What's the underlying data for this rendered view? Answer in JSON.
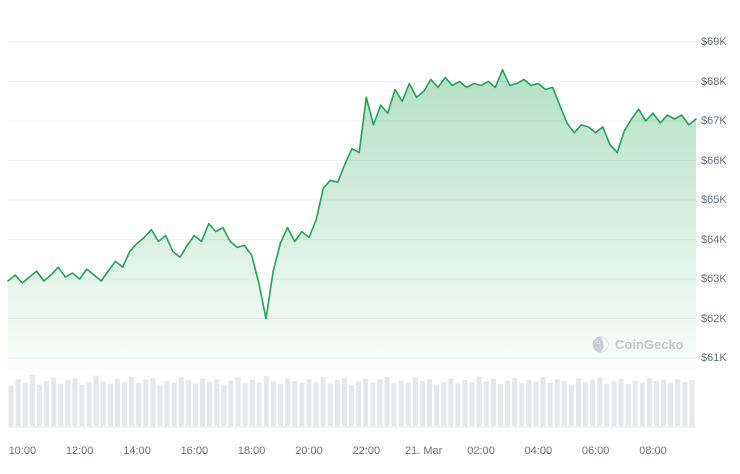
{
  "watermark": {
    "label": "CoinGecko"
  },
  "chart_data": {
    "type": "area",
    "x_unit": "hours",
    "x_range": [
      9.5,
      33.5
    ],
    "x_step_hours": 0.25,
    "y_axis_range_k": [
      61,
      69
    ],
    "grid": true,
    "legend": "none",
    "y_ticks": [
      {
        "value": 61,
        "label": "$61K"
      },
      {
        "value": 62,
        "label": "$62K"
      },
      {
        "value": 63,
        "label": "$63K"
      },
      {
        "value": 64,
        "label": "$64K"
      },
      {
        "value": 65,
        "label": "$65K"
      },
      {
        "value": 66,
        "label": "$66K"
      },
      {
        "value": 67,
        "label": "$67K"
      },
      {
        "value": 68,
        "label": "$68K"
      },
      {
        "value": 69,
        "label": "$69K"
      }
    ],
    "x_ticks": [
      {
        "hour": 10,
        "label": "10:00"
      },
      {
        "hour": 12,
        "label": "12:00"
      },
      {
        "hour": 14,
        "label": "14:00"
      },
      {
        "hour": 16,
        "label": "16:00"
      },
      {
        "hour": 18,
        "label": "18:00"
      },
      {
        "hour": 20,
        "label": "20:00"
      },
      {
        "hour": 22,
        "label": "22:00"
      },
      {
        "hour": 24,
        "label": "21. Mar"
      },
      {
        "hour": 26,
        "label": "02:00"
      },
      {
        "hour": 28,
        "label": "04:00"
      },
      {
        "hour": 30,
        "label": "06:00"
      },
      {
        "hour": 32,
        "label": "08:00"
      }
    ],
    "price_series_k": [
      62.95,
      63.1,
      62.9,
      63.05,
      63.2,
      62.95,
      63.1,
      63.3,
      63.05,
      63.15,
      63.0,
      63.25,
      63.1,
      62.95,
      63.2,
      63.45,
      63.3,
      63.7,
      63.9,
      64.05,
      64.25,
      63.95,
      64.1,
      63.7,
      63.55,
      63.85,
      64.1,
      63.95,
      64.4,
      64.2,
      64.3,
      63.95,
      63.8,
      63.85,
      63.6,
      62.9,
      62.0,
      63.2,
      63.9,
      64.3,
      63.95,
      64.2,
      64.05,
      64.5,
      65.3,
      65.5,
      65.45,
      65.9,
      66.3,
      66.2,
      67.6,
      66.9,
      67.4,
      67.2,
      67.8,
      67.5,
      67.95,
      67.6,
      67.75,
      68.05,
      67.85,
      68.1,
      67.9,
      68.0,
      67.85,
      67.95,
      67.9,
      68.0,
      67.85,
      68.3,
      67.9,
      67.95,
      68.05,
      67.9,
      67.95,
      67.8,
      67.85,
      67.4,
      66.95,
      66.7,
      66.9,
      66.85,
      66.7,
      66.85,
      66.4,
      66.2,
      66.75,
      67.05,
      67.3,
      67.0,
      67.2,
      66.95,
      67.15,
      67.05,
      67.15,
      66.9,
      67.05
    ],
    "volume_series": [
      0.55,
      0.7,
      0.62,
      0.8,
      0.58,
      0.66,
      0.74,
      0.6,
      0.68,
      0.72,
      0.57,
      0.63,
      0.78,
      0.65,
      0.59,
      0.71,
      0.64,
      0.76,
      0.61,
      0.69,
      0.73,
      0.58,
      0.66,
      0.62,
      0.75,
      0.68,
      0.6,
      0.72,
      0.64,
      0.7,
      0.58,
      0.67,
      0.74,
      0.61,
      0.69,
      0.63,
      0.77,
      0.65,
      0.59,
      0.72,
      0.66,
      0.62,
      0.7,
      0.64,
      0.76,
      0.6,
      0.68,
      0.73,
      0.57,
      0.65,
      0.71,
      0.63,
      0.69,
      0.75,
      0.61,
      0.67,
      0.62,
      0.74,
      0.66,
      0.7,
      0.58,
      0.64,
      0.72,
      0.6,
      0.68,
      0.63,
      0.76,
      0.65,
      0.71,
      0.59,
      0.67,
      0.73,
      0.61,
      0.69,
      0.64,
      0.75,
      0.62,
      0.7,
      0.66,
      0.58,
      0.72,
      0.63,
      0.68,
      0.74,
      0.6,
      0.65,
      0.71,
      0.59,
      0.67,
      0.62,
      0.73,
      0.66,
      0.69,
      0.61,
      0.7,
      0.64,
      0.68
    ],
    "colors": {
      "line": "#22a455",
      "fill": "#22a455",
      "grid": "#f0f2f4",
      "baseline": "#e3e5e8",
      "volume": "#e7e8eb",
      "axis_text": "#6e747e",
      "watermark_text": "#c6c9ce",
      "watermark_icon": "#c9ccd2"
    }
  }
}
